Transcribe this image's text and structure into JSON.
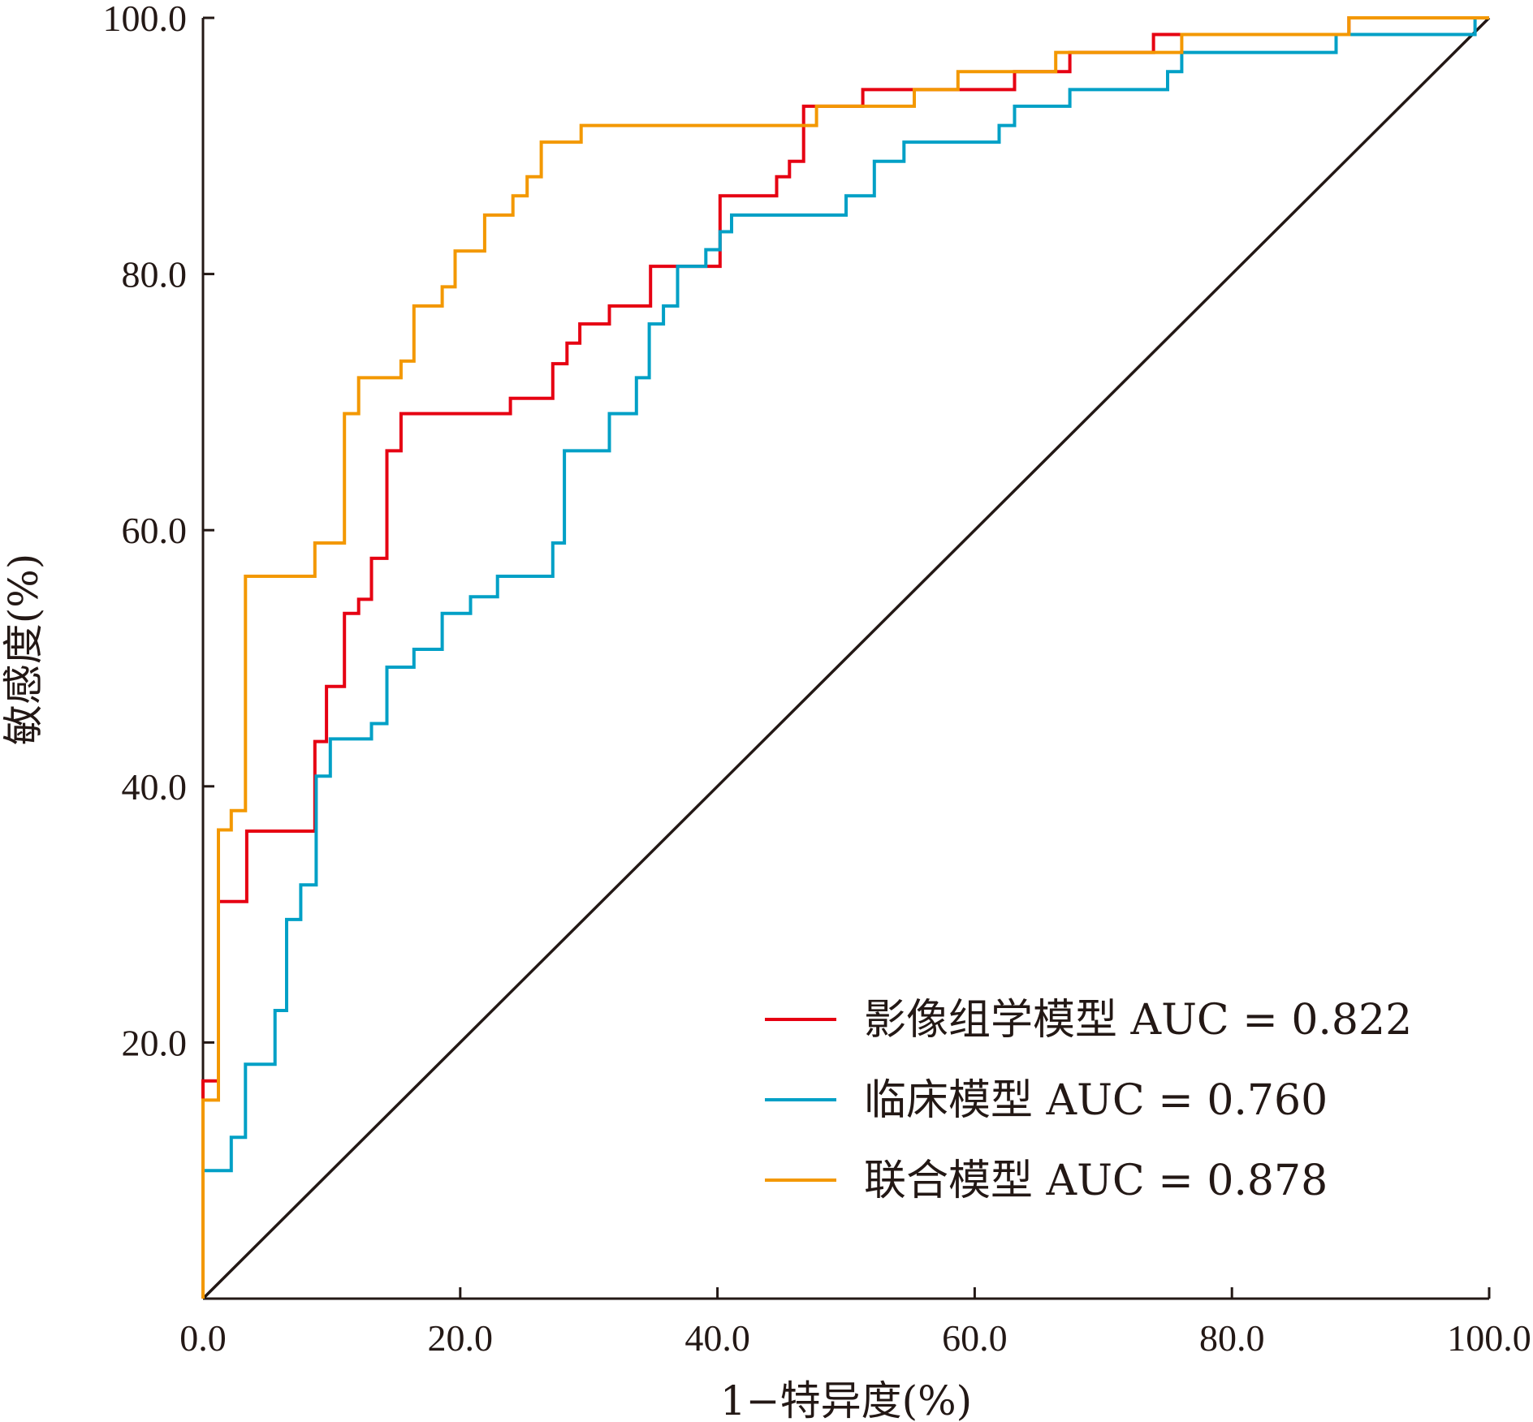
{
  "chart_data": {
    "type": "line",
    "title": "",
    "xlabel": "1−特异度(%)",
    "ylabel": "敏感度(%)",
    "xlim": [
      0,
      100
    ],
    "ylim": [
      0,
      100
    ],
    "x_ticks": [
      "0.0",
      "20.0",
      "40.0",
      "60.0",
      "80.0",
      "100.0"
    ],
    "y_ticks": [
      "20.0",
      "40.0",
      "60.0",
      "80.0",
      "100.0"
    ],
    "grid": false,
    "legend_position": "bottom-right",
    "reference_line": {
      "x": [
        0,
        100
      ],
      "y": [
        0,
        100
      ],
      "color": "#231815"
    },
    "series": [
      {
        "name": "影像组学模型",
        "legend_label": "影像组学模型 AUC = 0.822",
        "auc": 0.822,
        "color": "#e60012",
        "points": [
          [
            0,
            0
          ],
          [
            0,
            17
          ],
          [
            1.2,
            17
          ],
          [
            1.2,
            31
          ],
          [
            3.4,
            31
          ],
          [
            3.4,
            36.5
          ],
          [
            8.7,
            36.5
          ],
          [
            8.7,
            41
          ],
          [
            8.7,
            43.5
          ],
          [
            9.6,
            43.5
          ],
          [
            9.6,
            47.8
          ],
          [
            11,
            47.8
          ],
          [
            11,
            53.5
          ],
          [
            12.1,
            53.5
          ],
          [
            12.1,
            54.6
          ],
          [
            13.1,
            54.6
          ],
          [
            13.1,
            57.8
          ],
          [
            14.3,
            57.8
          ],
          [
            14.3,
            66.2
          ],
          [
            15.4,
            66.2
          ],
          [
            15.4,
            69.1
          ],
          [
            23.9,
            69.1
          ],
          [
            23.9,
            70.3
          ],
          [
            27.2,
            70.3
          ],
          [
            27.2,
            73
          ],
          [
            28.3,
            73
          ],
          [
            28.3,
            74.6
          ],
          [
            29.3,
            74.6
          ],
          [
            29.3,
            76.1
          ],
          [
            31.6,
            76.1
          ],
          [
            31.6,
            77.5
          ],
          [
            34.8,
            77.5
          ],
          [
            34.8,
            80.6
          ],
          [
            37.1,
            80.6
          ],
          [
            40.2,
            80.6
          ],
          [
            40.2,
            86.1
          ],
          [
            44.6,
            86.1
          ],
          [
            44.6,
            87.6
          ],
          [
            45.6,
            87.6
          ],
          [
            45.6,
            88.8
          ],
          [
            46.7,
            88.8
          ],
          [
            46.7,
            93.1
          ],
          [
            51.3,
            93.1
          ],
          [
            51.3,
            94.4
          ],
          [
            58.9,
            94.4
          ],
          [
            63.1,
            94.4
          ],
          [
            63.1,
            95.8
          ],
          [
            67.4,
            95.8
          ],
          [
            67.4,
            97.3
          ],
          [
            73.9,
            97.3
          ],
          [
            73.9,
            98.7
          ],
          [
            89.1,
            98.7
          ],
          [
            89.1,
            100
          ],
          [
            100,
            100
          ]
        ]
      },
      {
        "name": "临床模型",
        "legend_label": "临床模型 AUC = 0.760",
        "auc": 0.76,
        "color": "#00a0c6",
        "points": [
          [
            0,
            0
          ],
          [
            0,
            10
          ],
          [
            2.2,
            10
          ],
          [
            2.2,
            12.6
          ],
          [
            3.3,
            12.6
          ],
          [
            3.3,
            18.3
          ],
          [
            5.6,
            18.3
          ],
          [
            5.6,
            22.5
          ],
          [
            6.5,
            22.5
          ],
          [
            6.5,
            29.6
          ],
          [
            7.6,
            29.6
          ],
          [
            7.6,
            32.3
          ],
          [
            8.8,
            32.3
          ],
          [
            8.8,
            40.8
          ],
          [
            9.9,
            40.8
          ],
          [
            9.9,
            43.7
          ],
          [
            13.1,
            43.7
          ],
          [
            13.1,
            44.9
          ],
          [
            14.3,
            44.9
          ],
          [
            14.3,
            49.3
          ],
          [
            16.4,
            49.3
          ],
          [
            16.4,
            50.7
          ],
          [
            18.6,
            50.7
          ],
          [
            18.6,
            53.5
          ],
          [
            20.8,
            53.5
          ],
          [
            20.8,
            54.8
          ],
          [
            22.9,
            54.8
          ],
          [
            22.9,
            56.4
          ],
          [
            27.2,
            56.4
          ],
          [
            27.2,
            59
          ],
          [
            28.1,
            59
          ],
          [
            28.1,
            66.2
          ],
          [
            31.6,
            66.2
          ],
          [
            31.6,
            69.1
          ],
          [
            33.7,
            69.1
          ],
          [
            33.7,
            71.9
          ],
          [
            34.7,
            71.9
          ],
          [
            34.7,
            76.1
          ],
          [
            35.8,
            76.1
          ],
          [
            35.8,
            77.5
          ],
          [
            36.9,
            77.5
          ],
          [
            36.9,
            80.6
          ],
          [
            39.1,
            80.6
          ],
          [
            39.1,
            81.9
          ],
          [
            40.2,
            81.9
          ],
          [
            40.2,
            83.3
          ],
          [
            41.1,
            83.3
          ],
          [
            41.1,
            84.6
          ],
          [
            50,
            84.6
          ],
          [
            50,
            86.1
          ],
          [
            52.2,
            86.1
          ],
          [
            52.2,
            88.8
          ],
          [
            54.5,
            88.8
          ],
          [
            54.5,
            90.3
          ],
          [
            61.9,
            90.3
          ],
          [
            61.9,
            91.6
          ],
          [
            63.1,
            91.6
          ],
          [
            63.1,
            93.1
          ],
          [
            67.4,
            93.1
          ],
          [
            67.4,
            94.4
          ],
          [
            75,
            94.4
          ],
          [
            75,
            95.8
          ],
          [
            76.1,
            95.8
          ],
          [
            76.1,
            97.3
          ],
          [
            88.1,
            97.3
          ],
          [
            88.1,
            98.7
          ],
          [
            98.9,
            98.7
          ],
          [
            98.9,
            100
          ],
          [
            100,
            100
          ]
        ]
      },
      {
        "name": "联合模型",
        "legend_label": "联合模型 AUC = 0.878",
        "auc": 0.878,
        "color": "#f39800",
        "points": [
          [
            0,
            0
          ],
          [
            0,
            15.5
          ],
          [
            1.2,
            15.5
          ],
          [
            1.2,
            36.6
          ],
          [
            2.2,
            36.6
          ],
          [
            2.2,
            38.1
          ],
          [
            3.3,
            38.1
          ],
          [
            3.3,
            56.4
          ],
          [
            8.7,
            56.4
          ],
          [
            8.7,
            59
          ],
          [
            11,
            59
          ],
          [
            11,
            69.1
          ],
          [
            12.1,
            69.1
          ],
          [
            12.1,
            71.9
          ],
          [
            15.4,
            71.9
          ],
          [
            15.4,
            73.2
          ],
          [
            16.4,
            73.2
          ],
          [
            16.4,
            77.5
          ],
          [
            18.6,
            77.5
          ],
          [
            18.6,
            79
          ],
          [
            19.6,
            79
          ],
          [
            19.6,
            81.8
          ],
          [
            21.9,
            81.8
          ],
          [
            21.9,
            84.6
          ],
          [
            24.1,
            84.6
          ],
          [
            24.1,
            86.1
          ],
          [
            25.2,
            86.1
          ],
          [
            25.2,
            87.6
          ],
          [
            26.3,
            87.6
          ],
          [
            26.3,
            90.3
          ],
          [
            29.4,
            90.3
          ],
          [
            29.4,
            91.6
          ],
          [
            47.7,
            91.6
          ],
          [
            47.7,
            93.1
          ],
          [
            55.3,
            93.1
          ],
          [
            55.3,
            94.4
          ],
          [
            58.7,
            94.4
          ],
          [
            58.7,
            95.8
          ],
          [
            66.3,
            95.8
          ],
          [
            66.3,
            97.3
          ],
          [
            76.1,
            97.3
          ],
          [
            76.1,
            98.7
          ],
          [
            89.1,
            98.7
          ],
          [
            89.1,
            100
          ],
          [
            100,
            100
          ]
        ]
      }
    ]
  }
}
